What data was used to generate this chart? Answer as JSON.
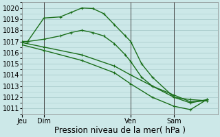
{
  "background_color": "#cce8e8",
  "grid_color": "#aacccc",
  "line_color": "#1a6e1a",
  "ylabel_text": "Pression niveau de la mer( hPa )",
  "ylim": [
    1010.5,
    1020.5
  ],
  "yticks": [
    1011,
    1012,
    1013,
    1014,
    1015,
    1016,
    1017,
    1018,
    1019,
    1020
  ],
  "xlim": [
    0,
    72
  ],
  "xtick_positions": [
    0,
    8,
    40,
    56
  ],
  "xtick_labels": [
    "Jeu",
    "Dim",
    "Ven",
    "Sam"
  ],
  "vline_positions": [
    8,
    40,
    56
  ],
  "line1_x": [
    0,
    2,
    8,
    14,
    18,
    22,
    26,
    30,
    34,
    38,
    40,
    44,
    48,
    56,
    62,
    68
  ],
  "line1_y": [
    1017.0,
    1017.0,
    1019.1,
    1019.2,
    1019.6,
    1020.0,
    1019.95,
    1019.5,
    1018.5,
    1017.5,
    1017.0,
    1015.0,
    1013.8,
    1012.0,
    1011.8,
    1011.7
  ],
  "line2_x": [
    0,
    2,
    8,
    14,
    18,
    22,
    26,
    30,
    34,
    38,
    40,
    44,
    48,
    56,
    62,
    68
  ],
  "line2_y": [
    1017.0,
    1017.0,
    1017.2,
    1017.5,
    1017.8,
    1018.0,
    1017.8,
    1017.5,
    1016.8,
    1015.8,
    1015.2,
    1013.8,
    1013.0,
    1012.2,
    1011.6,
    1011.7
  ],
  "line3_x": [
    0,
    8,
    22,
    34,
    40,
    48,
    56,
    62,
    68
  ],
  "line3_y": [
    1016.9,
    1016.5,
    1015.8,
    1014.8,
    1014.0,
    1013.0,
    1012.0,
    1011.5,
    1011.8
  ],
  "line4_x": [
    0,
    8,
    22,
    34,
    40,
    48,
    56,
    62,
    68
  ],
  "line4_y": [
    1016.7,
    1016.2,
    1015.3,
    1014.2,
    1013.2,
    1012.0,
    1011.2,
    1010.9,
    1011.8
  ],
  "tick_fontsize": 7,
  "xlabel_fontsize": 8.5,
  "linewidth": 1.0,
  "markersize": 3.5
}
